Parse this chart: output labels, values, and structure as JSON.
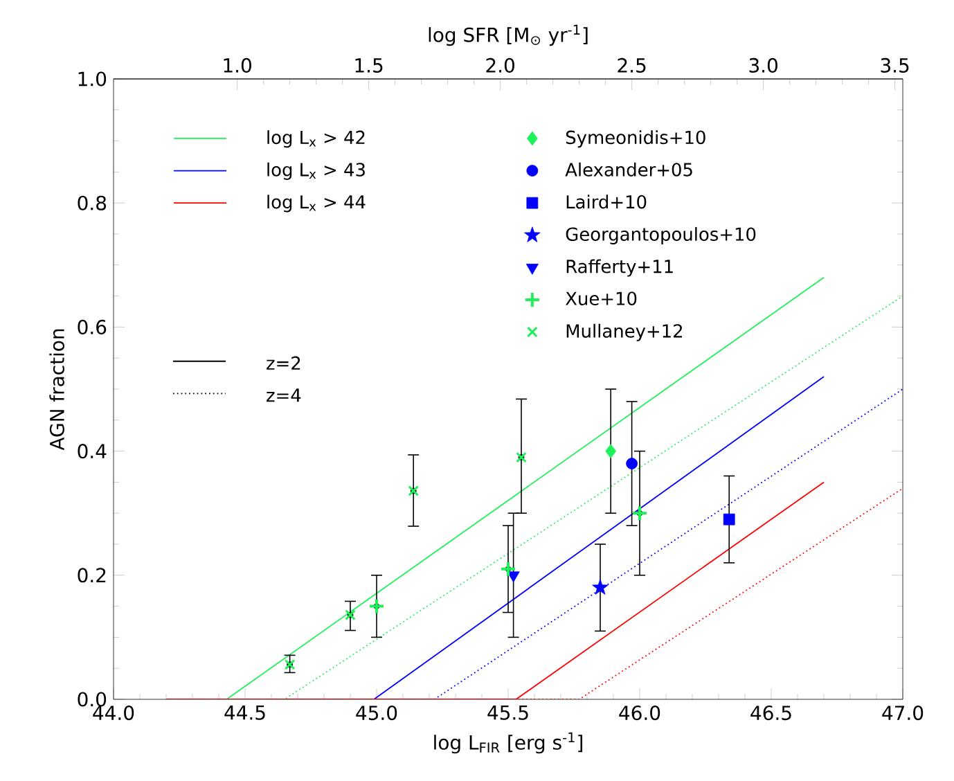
{
  "chart_data": {
    "type": "scatter",
    "xlabel": "log L$_{FIR}$ [erg s$^{-1}$]",
    "ylabel": "AGN fraction",
    "x2label": "log SFR [M$_{⊙}$ yr$^{-1}$]",
    "xlim": [
      44.0,
      47.0
    ],
    "xticks": [
      {
        "value": 44.0,
        "label": "44.0"
      },
      {
        "value": 44.5,
        "label": "44.5"
      },
      {
        "value": 45.0,
        "label": "45.0"
      },
      {
        "value": 45.5,
        "label": "45.5"
      },
      {
        "value": 46.0,
        "label": "46.0"
      },
      {
        "value": 46.5,
        "label": "46.5"
      },
      {
        "value": 47.0,
        "label": "47.0"
      }
    ],
    "x2lim": [
      0.53,
      3.53
    ],
    "x2ticks": [
      {
        "value": 1.0,
        "label": "1.0"
      },
      {
        "value": 1.5,
        "label": "1.5"
      },
      {
        "value": 2.0,
        "label": "2.0"
      },
      {
        "value": 2.5,
        "label": "2.5"
      },
      {
        "value": 3.0,
        "label": "3.0"
      },
      {
        "value": 3.5,
        "label": "3.5"
      }
    ],
    "ylim": [
      0,
      1.0
    ],
    "yticks": [
      {
        "value": 0,
        "label": "0.0"
      },
      {
        "value": 0.2,
        "label": "0.2"
      },
      {
        "value": 0.4,
        "label": "0.4"
      },
      {
        "value": 0.6,
        "label": "0.6"
      },
      {
        "value": 0.8,
        "label": "0.8"
      },
      {
        "value": 1.0,
        "label": "1.0"
      }
    ],
    "grid": false,
    "legend": "top",
    "annotations": [
      "z=2",
      "z=4"
    ],
    "series": [
      {
        "type": "line",
        "name": "log L$_{x}$ > 42",
        "color": "#1ef05a",
        "line_style": "solid",
        "x": [
          44.2,
          44.43,
          46.7
        ],
        "values": [
          0,
          0,
          0.68
        ]
      },
      {
        "type": "line",
        "name": "log L$_{x}$ > 43",
        "color": "#0000ff",
        "line_style": "solid",
        "x": [
          44.2,
          44.99,
          46.7
        ],
        "values": [
          0,
          0,
          0.52
        ]
      },
      {
        "type": "line",
        "name": "log L$_{x}$ > 44",
        "color": "#ff0000",
        "line_style": "solid",
        "x": [
          44.2,
          45.53,
          46.7
        ],
        "values": [
          0,
          0,
          0.35
        ]
      },
      {
        "type": "line",
        "color": "#1ef05a",
        "line_style": "dotted",
        "x": [
          44.2,
          44.65,
          47.0
        ],
        "values": [
          0,
          0,
          0.65
        ]
      },
      {
        "type": "line",
        "color": "#0000ff",
        "line_style": "dotted",
        "x": [
          44.2,
          45.22,
          47.0
        ],
        "values": [
          0,
          0,
          0.5
        ]
      },
      {
        "type": "line",
        "color": "#ff0000",
        "line_style": "dotted",
        "x": [
          44.2,
          45.77,
          47.0
        ],
        "values": [
          0,
          0,
          0.34
        ]
      },
      {
        "name": "Symeonidis+10",
        "marker": "diamond",
        "x": [
          45.89
        ],
        "values": [
          0.4
        ],
        "errors": [
          [
            0.3,
            0.5
          ]
        ],
        "colors": [
          "#1ef05a"
        ]
      },
      {
        "name": "Alexander+05",
        "marker": "circle",
        "x": [
          45.97
        ],
        "values": [
          0.38
        ],
        "errors": [
          [
            0.28,
            0.48
          ]
        ],
        "colors": [
          "#0000ff"
        ]
      },
      {
        "name": "Laird+10",
        "marker": "square",
        "x": [
          46.34
        ],
        "values": [
          0.29
        ],
        "errors": [
          [
            0.22,
            0.36
          ]
        ],
        "colors": [
          "#0000ff"
        ]
      },
      {
        "name": "Georgantopoulos+10",
        "marker": "star",
        "x": [
          45.85
        ],
        "values": [
          0.18
        ],
        "errors": [
          [
            0.11,
            0.25
          ]
        ],
        "colors": [
          "#0000ff"
        ]
      },
      {
        "name": "Rafferty+11",
        "marker": "triangle",
        "x": [
          45.52
        ],
        "values": [
          0.2
        ],
        "errors": [
          [
            0.1,
            0.3
          ]
        ],
        "colors": [
          "#0000ff"
        ]
      },
      {
        "name": "Xue+10",
        "marker": "plus",
        "x": [
          45.0,
          45.5,
          46.0
        ],
        "values": [
          0.15,
          0.21,
          0.3
        ],
        "errors": [
          [
            0.1,
            0.2
          ],
          [
            0.14,
            0.28
          ],
          [
            0.2,
            0.4
          ]
        ],
        "colors": [
          "#1ef05a",
          "#1ef05a",
          "#1ef05a"
        ]
      },
      {
        "name": "Mullaney+12",
        "marker": "cross",
        "x": [
          44.67,
          44.9,
          45.14,
          45.55
        ],
        "values": [
          0.056,
          0.136,
          0.336,
          0.39
        ],
        "errors": [
          [
            0.043,
            0.071
          ],
          [
            0.111,
            0.158
          ],
          [
            0.279,
            0.394
          ],
          [
            0.3,
            0.484
          ]
        ],
        "colors": [
          "#1ef05a",
          "#1ef05a",
          "#1ef05a",
          "#1ef05a"
        ]
      }
    ]
  }
}
